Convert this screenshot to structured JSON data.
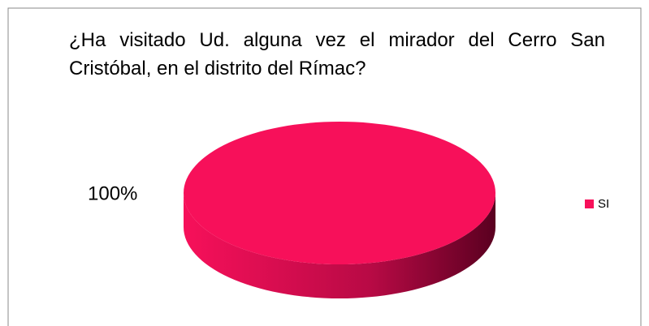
{
  "chart_data": {
    "type": "pie",
    "title": "¿Ha visitado Ud. alguna vez el mirador del Cerro San Cristóbal, en el distrito del Rímac?",
    "categories": [
      "SI"
    ],
    "values": [
      100
    ],
    "value_labels": [
      "100%"
    ],
    "colors": [
      "#f7105a"
    ],
    "legend": "right"
  }
}
